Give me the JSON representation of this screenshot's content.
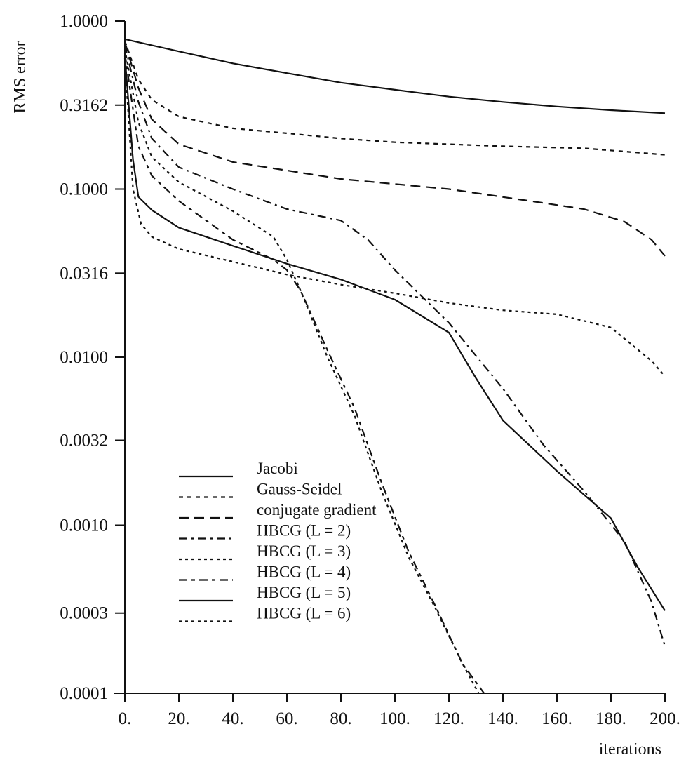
{
  "chart_data": {
    "type": "line",
    "title": "",
    "xlabel": "iterations",
    "ylabel": "RMS error",
    "y_scale": "log",
    "xlim": [
      0,
      200
    ],
    "ylim": [
      0.0001,
      1.0
    ],
    "grid": false,
    "legend_position": "bottom-left",
    "x_ticks": [
      0,
      20,
      40,
      60,
      80,
      100,
      120,
      140,
      160,
      180,
      200
    ],
    "x_tick_labels": [
      "0.",
      "20.",
      "40.",
      "60.",
      "80.",
      "100.",
      "120.",
      "140.",
      "160.",
      "180.",
      "200."
    ],
    "y_ticks": [
      0.0001,
      0.0003,
      0.001,
      0.0032,
      0.01,
      0.0316,
      0.1,
      0.3162,
      1.0
    ],
    "y_tick_labels": [
      "0.0001",
      "0.0003",
      "0.0010",
      "0.0032",
      "0.0100",
      "0.0316",
      "0.1000",
      "0.3162",
      "1.0000"
    ],
    "series": [
      {
        "name": "Jacobi",
        "dash": "",
        "points": [
          [
            0,
            0.78
          ],
          [
            20,
            0.66
          ],
          [
            40,
            0.56
          ],
          [
            60,
            0.49
          ],
          [
            80,
            0.43
          ],
          [
            100,
            0.39
          ],
          [
            120,
            0.355
          ],
          [
            140,
            0.33
          ],
          [
            160,
            0.31
          ],
          [
            180,
            0.295
          ],
          [
            200,
            0.283
          ]
        ]
      },
      {
        "name": "Gauss-Seidel",
        "dash": "6 6",
        "points": [
          [
            0,
            0.76
          ],
          [
            5,
            0.45
          ],
          [
            10,
            0.34
          ],
          [
            20,
            0.27
          ],
          [
            40,
            0.23
          ],
          [
            60,
            0.215
          ],
          [
            80,
            0.2
          ],
          [
            100,
            0.19
          ],
          [
            140,
            0.18
          ],
          [
            170,
            0.175
          ],
          [
            200,
            0.16
          ]
        ]
      },
      {
        "name": "conjugate gradient",
        "dash": "14 8",
        "points": [
          [
            0,
            0.75
          ],
          [
            5,
            0.4
          ],
          [
            10,
            0.26
          ],
          [
            20,
            0.185
          ],
          [
            40,
            0.145
          ],
          [
            80,
            0.115
          ],
          [
            120,
            0.1
          ],
          [
            150,
            0.085
          ],
          [
            170,
            0.076
          ],
          [
            185,
            0.064
          ],
          [
            195,
            0.05
          ],
          [
            200,
            0.04
          ]
        ]
      },
      {
        "name": "HBCG (L = 2)",
        "dash": "12 6 3 6",
        "points": [
          [
            0,
            0.72
          ],
          [
            5,
            0.33
          ],
          [
            10,
            0.2
          ],
          [
            20,
            0.135
          ],
          [
            40,
            0.1
          ],
          [
            60,
            0.076
          ],
          [
            80,
            0.065
          ],
          [
            90,
            0.05
          ],
          [
            100,
            0.033
          ],
          [
            120,
            0.016
          ],
          [
            140,
            0.0065
          ],
          [
            155,
            0.003
          ],
          [
            170,
            0.0016
          ],
          [
            185,
            0.0008
          ],
          [
            195,
            0.00035
          ],
          [
            200,
            0.00019
          ]
        ]
      },
      {
        "name": "HBCG (L = 3)",
        "dash": "4 5",
        "points": [
          [
            0,
            0.68
          ],
          [
            5,
            0.25
          ],
          [
            10,
            0.155
          ],
          [
            20,
            0.11
          ],
          [
            40,
            0.074
          ],
          [
            55,
            0.052
          ],
          [
            60,
            0.038
          ],
          [
            65,
            0.025
          ],
          [
            75,
            0.01
          ],
          [
            85,
            0.0045
          ],
          [
            95,
            0.0016
          ],
          [
            105,
            0.00065
          ],
          [
            115,
            0.00032
          ],
          [
            125,
            0.00015
          ],
          [
            131,
            0.0001
          ]
        ]
      },
      {
        "name": "HBCG (L = 4)",
        "dash": "12 6 5 6",
        "points": [
          [
            0,
            0.64
          ],
          [
            5,
            0.18
          ],
          [
            10,
            0.12
          ],
          [
            20,
            0.085
          ],
          [
            40,
            0.05
          ],
          [
            55,
            0.038
          ],
          [
            60,
            0.033
          ],
          [
            65,
            0.025
          ],
          [
            75,
            0.011
          ],
          [
            85,
            0.005
          ],
          [
            95,
            0.0018
          ],
          [
            105,
            0.0007
          ],
          [
            115,
            0.00033
          ],
          [
            125,
            0.00015
          ],
          [
            133,
            0.0001
          ]
        ]
      },
      {
        "name": "HBCG (L = 5)",
        "dash": "",
        "points": [
          [
            0,
            0.62
          ],
          [
            3,
            0.15
          ],
          [
            5,
            0.09
          ],
          [
            10,
            0.075
          ],
          [
            20,
            0.059
          ],
          [
            40,
            0.046
          ],
          [
            60,
            0.036
          ],
          [
            80,
            0.029
          ],
          [
            100,
            0.022
          ],
          [
            120,
            0.014
          ],
          [
            130,
            0.0075
          ],
          [
            140,
            0.0042
          ],
          [
            160,
            0.0021
          ],
          [
            180,
            0.0011
          ],
          [
            190,
            0.00056
          ],
          [
            200,
            0.00031
          ]
        ]
      },
      {
        "name": "HBCG (L = 6)",
        "dash": "4 5",
        "points": [
          [
            0,
            0.6
          ],
          [
            3,
            0.1
          ],
          [
            6,
            0.062
          ],
          [
            10,
            0.052
          ],
          [
            20,
            0.044
          ],
          [
            40,
            0.037
          ],
          [
            60,
            0.031
          ],
          [
            80,
            0.027
          ],
          [
            100,
            0.024
          ],
          [
            120,
            0.021
          ],
          [
            140,
            0.019
          ],
          [
            160,
            0.018
          ],
          [
            180,
            0.015
          ],
          [
            195,
            0.0095
          ],
          [
            200,
            0.0077
          ]
        ]
      }
    ]
  }
}
